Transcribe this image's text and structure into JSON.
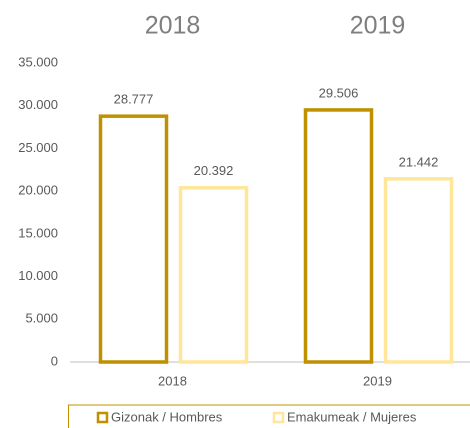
{
  "chart_data": {
    "type": "bar",
    "annotations": [
      "2018",
      "2019"
    ],
    "categories": [
      "2018",
      "2019"
    ],
    "series": [
      {
        "name": "Gizonak / Hombres",
        "color": "#bf9000",
        "values": [
          28777,
          29506
        ],
        "value_labels": [
          "28.777",
          "29.506"
        ]
      },
      {
        "name": "Emakumeak / Mujeres",
        "color": "#ffe699",
        "values": [
          20392,
          21442
        ],
        "value_labels": [
          "20.392",
          "21.442"
        ]
      }
    ],
    "ylim": [
      0,
      35000
    ],
    "yticks": [
      0,
      {
        "value": 5000,
        "label": "5.000"
      },
      {
        "value": 10000,
        "label": "10.000"
      },
      {
        "value": 15000,
        "label": "15.000"
      },
      {
        "value": 20000,
        "label": "20.000"
      },
      {
        "value": 25000,
        "label": "25.000"
      },
      {
        "value": 30000,
        "label": "30.000"
      },
      {
        "value": 35000,
        "label": "35.000"
      }
    ],
    "grid": false,
    "legend": "bottom"
  }
}
